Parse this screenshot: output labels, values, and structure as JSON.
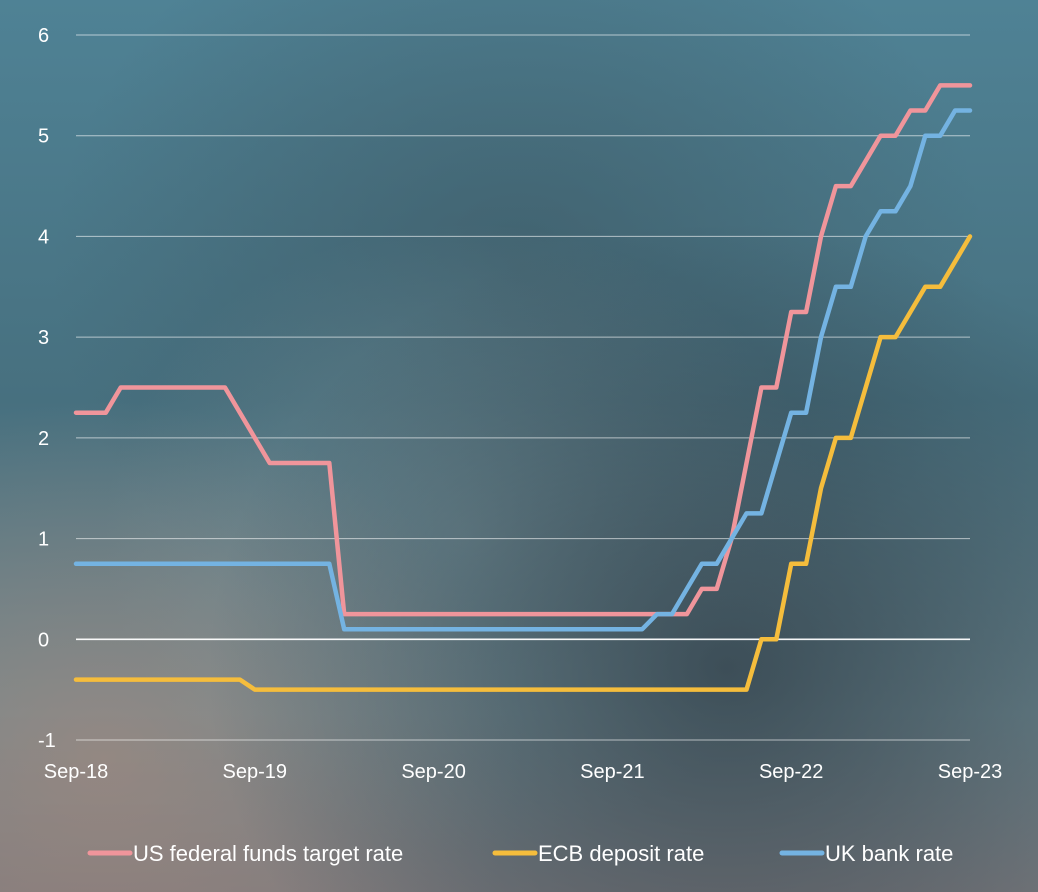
{
  "chart_data": {
    "type": "line",
    "title": "",
    "xlabel": "",
    "ylabel": "",
    "x_range": [
      "2018-09",
      "2023-09"
    ],
    "ylim": [
      -1,
      6
    ],
    "y_ticks": [
      -1,
      0,
      1,
      2,
      3,
      4,
      5,
      6
    ],
    "x_ticks": [
      {
        "label": "Sep-18",
        "value": 0
      },
      {
        "label": "Sep-19",
        "value": 12
      },
      {
        "label": "Sep-20",
        "value": 24
      },
      {
        "label": "Sep-21",
        "value": 36
      },
      {
        "label": "Sep-22",
        "value": 48
      },
      {
        "label": "Sep-23",
        "value": 60
      }
    ],
    "grid": true,
    "legend_position": "bottom",
    "series": [
      {
        "name": "US federal funds target rate",
        "color": "#f0959b",
        "points": [
          [
            0,
            2.25
          ],
          [
            2,
            2.25
          ],
          [
            3,
            2.5
          ],
          [
            10,
            2.5
          ],
          [
            13,
            1.75
          ],
          [
            17,
            1.75
          ],
          [
            18,
            0.25
          ],
          [
            39,
            0.25
          ],
          [
            41,
            0.25
          ],
          [
            42,
            0.5
          ],
          [
            43,
            0.5
          ],
          [
            44,
            1.0
          ],
          [
            45,
            1.75
          ],
          [
            46,
            2.5
          ],
          [
            47,
            2.5
          ],
          [
            48,
            3.25
          ],
          [
            49,
            3.25
          ],
          [
            50,
            4.0
          ],
          [
            51,
            4.5
          ],
          [
            52,
            4.5
          ],
          [
            54,
            5.0
          ],
          [
            55,
            5.0
          ],
          [
            56,
            5.25
          ],
          [
            57,
            5.25
          ],
          [
            58,
            5.5
          ],
          [
            60,
            5.5
          ]
        ]
      },
      {
        "name": "ECB deposit rate",
        "color": "#f5bd3c",
        "points": [
          [
            0,
            -0.4
          ],
          [
            11,
            -0.4
          ],
          [
            12,
            -0.5
          ],
          [
            45,
            -0.5
          ],
          [
            46,
            0.0
          ],
          [
            47,
            0.0
          ],
          [
            48,
            0.75
          ],
          [
            49,
            0.75
          ],
          [
            50,
            1.5
          ],
          [
            51,
            2.0
          ],
          [
            52,
            2.0
          ],
          [
            53,
            2.5
          ],
          [
            54,
            3.0
          ],
          [
            55,
            3.0
          ],
          [
            57,
            3.5
          ],
          [
            58,
            3.5
          ],
          [
            60,
            4.0
          ]
        ]
      },
      {
        "name": "UK bank rate",
        "color": "#74b3e2",
        "points": [
          [
            0,
            0.75
          ],
          [
            17,
            0.75
          ],
          [
            18,
            0.1
          ],
          [
            38,
            0.1
          ],
          [
            39,
            0.25
          ],
          [
            40,
            0.25
          ],
          [
            41,
            0.5
          ],
          [
            42,
            0.75
          ],
          [
            43,
            0.75
          ],
          [
            44,
            1.0
          ],
          [
            45,
            1.25
          ],
          [
            46,
            1.25
          ],
          [
            47,
            1.75
          ],
          [
            48,
            2.25
          ],
          [
            49,
            2.25
          ],
          [
            50,
            3.0
          ],
          [
            51,
            3.5
          ],
          [
            52,
            3.5
          ],
          [
            53,
            4.0
          ],
          [
            54,
            4.25
          ],
          [
            55,
            4.25
          ],
          [
            56,
            4.5
          ],
          [
            57,
            5.0
          ],
          [
            58,
            5.0
          ],
          [
            59,
            5.25
          ],
          [
            60,
            5.25
          ]
        ]
      }
    ]
  }
}
